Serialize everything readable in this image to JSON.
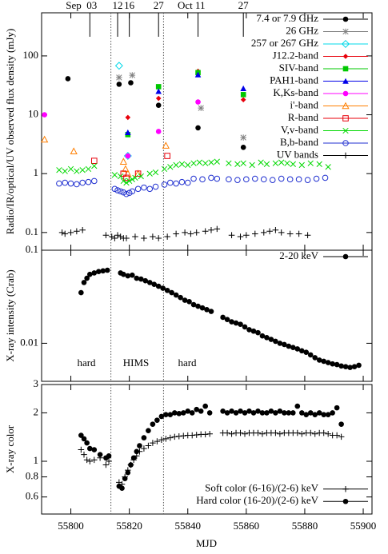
{
  "chart_data": {
    "type": "scatter",
    "xlabel": "MJD",
    "xlim": [
      55790,
      55903
    ],
    "xticks": [
      55800,
      55820,
      55840,
      55860,
      55880,
      55900
    ],
    "date_markers": [
      {
        "x": 55806.5,
        "label": "Sep  03"
      },
      {
        "x": 55816,
        "label": "12"
      },
      {
        "x": 55820,
        "label": "16"
      },
      {
        "x": 55830,
        "label": "27"
      },
      {
        "x": 55843.5,
        "label": "Oct 11"
      },
      {
        "x": 55859,
        "label": "27"
      }
    ],
    "state_boundaries": [
      55813.7,
      55831.7
    ],
    "panels": [
      {
        "ylabel": "Radio/IR/optical/UV observed flux density (mJy)",
        "yscale": "log",
        "ylim": [
          0.05,
          540
        ],
        "yticks": [
          0.1,
          1,
          10,
          100
        ],
        "legend": "top-right",
        "series": [
          {
            "name": "7.4 or 7.9 GHz",
            "color": "#000000",
            "marker": "circle-filled",
            "x": [
              55799,
              55816.5,
              55820.5,
              55830,
              55843.5,
              55859
            ],
            "values": [
              41,
              33,
              35,
              14.5,
              6,
              2.8
            ]
          },
          {
            "name": "26 GHz",
            "color": "#808080",
            "marker": "asterisk",
            "x": [
              55816.5,
              55821,
              55844.5,
              55859
            ],
            "values": [
              43,
              47,
              13,
              4.1
            ]
          },
          {
            "name": "257 or 267 GHz",
            "color": "#00d8e8",
            "marker": "diamond-open",
            "x": [
              55816.5,
              55819.5
            ],
            "values": [
              68,
              2
            ]
          },
          {
            "name": "J12.2-band",
            "color": "#e8000b",
            "marker": "diamond-filled",
            "x": [
              55819.5,
              55830,
              55843.5,
              55859
            ],
            "values": [
              9,
              19,
              55,
              18
            ]
          },
          {
            "name": "SIV-band",
            "color": "#00c800",
            "marker": "square-filled",
            "x": [
              55819.5,
              55830,
              55843.5,
              55859
            ],
            "values": [
              4.6,
              30,
              52,
              22
            ]
          },
          {
            "name": "PAH1-band",
            "color": "#0000e8",
            "marker": "triangle-filled",
            "x": [
              55819.5,
              55830,
              55843.5,
              55859
            ],
            "values": [
              5,
              25,
              48,
              28
            ]
          },
          {
            "name": "K,Ks-band",
            "color": "#ff00ff",
            "marker": "circle-filled",
            "x": [
              55791,
              55819.5,
              55830,
              55843.5
            ],
            "values": [
              10,
              2,
              5.2,
              16.5
            ]
          },
          {
            "name": "i'-band",
            "color": "#ff7f00",
            "marker": "triangle-open",
            "x": [
              55791,
              55801,
              55818,
              55818.7,
              55819.5,
              55823,
              55832.5
            ],
            "values": [
              3.8,
              2.4,
              1.6,
              1.2,
              1.0,
              1.0,
              3.0
            ]
          },
          {
            "name": "R-band",
            "color": "#e8000b",
            "marker": "square-open",
            "x": [
              55808,
              55818,
              55819,
              55823,
              55833
            ],
            "values": [
              1.65,
              1.0,
              0.85,
              1.0,
              2.0
            ]
          },
          {
            "name": "V,v-band",
            "color": "#00d800",
            "marker": "x",
            "x": [
              55796,
              55798,
              55800,
              55802,
              55804,
              55806,
              55808,
              55815,
              55817,
              55818,
              55819,
              55820,
              55821,
              55822,
              55824,
              55827,
              55829,
              55832,
              55834,
              55836,
              55838,
              55840,
              55842,
              55844,
              55846,
              55848,
              55850,
              55854,
              55857,
              55859,
              55862,
              55865,
              55867,
              55870,
              55872,
              55874,
              55876,
              55879,
              55882,
              55885,
              55888
            ],
            "values": [
              1.15,
              1.1,
              1.2,
              1.1,
              1.15,
              1.2,
              1.35,
              0.95,
              0.9,
              0.75,
              0.7,
              0.75,
              0.8,
              0.85,
              0.9,
              1.0,
              1.05,
              1.2,
              1.3,
              1.4,
              1.45,
              1.4,
              1.5,
              1.55,
              1.5,
              1.55,
              1.6,
              1.5,
              1.45,
              1.5,
              1.4,
              1.55,
              1.45,
              1.5,
              1.55,
              1.5,
              1.45,
              1.4,
              1.5,
              1.45,
              1.3
            ]
          },
          {
            "name": "B,b-band",
            "color": "#2030d0",
            "marker": "circle-open",
            "x": [
              55796,
              55798,
              55800,
              55802,
              55804,
              55806,
              55808,
              55815,
              55816,
              55817,
              55818,
              55819,
              55820,
              55821,
              55823,
              55825,
              55827,
              55829,
              55832,
              55834,
              55836,
              55838,
              55840,
              55842,
              55845,
              55848,
              55850,
              55854,
              55857,
              55860,
              55863,
              55866,
              55869,
              55872,
              55875,
              55878,
              55881,
              55884,
              55887
            ],
            "values": [
              0.68,
              0.7,
              0.68,
              0.66,
              0.7,
              0.72,
              0.75,
              0.55,
              0.52,
              0.5,
              0.48,
              0.45,
              0.47,
              0.5,
              0.55,
              0.58,
              0.55,
              0.6,
              0.65,
              0.7,
              0.68,
              0.72,
              0.7,
              0.82,
              0.8,
              0.85,
              0.82,
              0.8,
              0.78,
              0.8,
              0.82,
              0.8,
              0.78,
              0.82,
              0.8,
              0.8,
              0.78,
              0.82,
              0.85
            ]
          },
          {
            "name": "UV bands",
            "color": "#000000",
            "marker": "plus",
            "x": [
              55797,
              55798,
              55800,
              55802,
              55804,
              55812,
              55814,
              55815,
              55816,
              55817,
              55818,
              55819,
              55822,
              55825,
              55828,
              55830,
              55833,
              55836,
              55839,
              55841,
              55843,
              55846,
              55848,
              55850,
              55855,
              55858,
              55860,
              55863,
              55866,
              55868,
              55870,
              55872,
              55875,
              55878,
              55881
            ],
            "values": [
              0.1,
              0.095,
              0.1,
              0.105,
              0.11,
              0.09,
              0.085,
              0.08,
              0.09,
              0.085,
              0.08,
              0.08,
              0.085,
              0.08,
              0.085,
              0.08,
              0.085,
              0.095,
              0.1,
              0.095,
              0.1,
              0.105,
              0.11,
              0.115,
              0.09,
              0.085,
              0.09,
              0.095,
              0.1,
              0.105,
              0.11,
              0.1,
              0.095,
              0.095,
              0.09
            ]
          }
        ]
      },
      {
        "ylabel": "X-ray intensity (Crab)",
        "yscale": "log",
        "ylim": [
          0.0039,
          0.1
        ],
        "yticks": [
          0.01,
          0.1
        ],
        "legend": "top-right",
        "annotations": [
          "hard",
          "HIMS",
          "hard"
        ],
        "series": [
          {
            "name": "2-20 keV",
            "color": "#000000",
            "marker": "circle-filled",
            "x": [
              55803.5,
              55804.5,
              55805.5,
              55806.5,
              55808,
              55809.5,
              55811,
              55812.5,
              55817,
              55818,
              55819.5,
              55821,
              55822.5,
              55824,
              55825.5,
              55827,
              55828.5,
              55830,
              55831.5,
              55833,
              55834.5,
              55836,
              55837.5,
              55839,
              55840.5,
              55842,
              55843.5,
              55845,
              55846.5,
              55848,
              55852,
              55853.5,
              55855,
              55856.5,
              55858,
              55859.5,
              55861,
              55862.5,
              55864,
              55865.5,
              55867,
              55868.5,
              55870,
              55871.5,
              55873,
              55874.5,
              55876,
              55877.5,
              55879,
              55880.5,
              55882,
              55883.5,
              55885,
              55886.5,
              55888,
              55889.5,
              55891,
              55892.5,
              55894,
              55895.5,
              55897,
              55898.5
            ],
            "values": [
              0.035,
              0.045,
              0.05,
              0.055,
              0.057,
              0.059,
              0.06,
              0.061,
              0.057,
              0.055,
              0.053,
              0.054,
              0.05,
              0.049,
              0.047,
              0.045,
              0.043,
              0.041,
              0.039,
              0.037,
              0.035,
              0.033,
              0.031,
              0.029,
              0.028,
              0.026,
              0.025,
              0.024,
              0.023,
              0.022,
              0.019,
              0.018,
              0.017,
              0.0165,
              0.016,
              0.015,
              0.014,
              0.0135,
              0.013,
              0.012,
              0.0115,
              0.011,
              0.0105,
              0.01,
              0.0097,
              0.0093,
              0.009,
              0.0087,
              0.0083,
              0.008,
              0.0075,
              0.007,
              0.0066,
              0.0064,
              0.0062,
              0.006,
              0.0059,
              0.0057,
              0.0056,
              0.0055,
              0.0056,
              0.0058
            ]
          }
        ]
      },
      {
        "ylabel": "X-ray color",
        "yscale": "log",
        "ylim": [
          0.47,
          3
        ],
        "yticks": [
          0.6,
          0.8,
          1,
          2,
          3
        ],
        "legend": "bottom-right",
        "series": [
          {
            "name": "Soft color (6-16)/(2-6) keV",
            "color": "#000000",
            "marker": "plus",
            "x": [
              55803.5,
              55804.5,
              55805.5,
              55806.5,
              55808,
              55810,
              55812,
              55813,
              55816.5,
              55817.5,
              55818.5,
              55819.5,
              55820.5,
              55821.5,
              55822.5,
              55823.5,
              55825,
              55826.5,
              55828,
              55829.5,
              55831,
              55832.5,
              55834,
              55835.5,
              55837,
              55838.5,
              55840,
              55841.5,
              55843,
              55844.5,
              55846,
              55847.5,
              55852,
              55853.5,
              55855,
              55856.5,
              55858,
              55859.5,
              55861,
              55862.5,
              55864,
              55865.5,
              55867,
              55868.5,
              55870,
              55871.5,
              55873,
              55874.5,
              55876,
              55877.5,
              55879,
              55880.5,
              55882,
              55883.5,
              55885,
              55886.5,
              55888,
              55889.5,
              55891,
              55892.5
            ],
            "values": [
              1.18,
              1.1,
              1.02,
              1.0,
              1.02,
              1.05,
              0.95,
              1.0,
              0.74,
              0.72,
              0.8,
              0.88,
              0.95,
              1.02,
              1.08,
              1.15,
              1.2,
              1.25,
              1.3,
              1.33,
              1.36,
              1.38,
              1.4,
              1.42,
              1.43,
              1.44,
              1.45,
              1.45,
              1.46,
              1.47,
              1.47,
              1.48,
              1.5,
              1.5,
              1.48,
              1.5,
              1.5,
              1.48,
              1.5,
              1.5,
              1.5,
              1.48,
              1.5,
              1.5,
              1.5,
              1.48,
              1.5,
              1.5,
              1.5,
              1.5,
              1.48,
              1.5,
              1.5,
              1.48,
              1.5,
              1.5,
              1.48,
              1.45,
              1.45,
              1.42
            ]
          },
          {
            "name": "Hard color (16-20)/(2-6) keV",
            "color": "#000000",
            "marker": "circle-filled",
            "x": [
              55803.5,
              55804.5,
              55805.5,
              55806.5,
              55808,
              55810,
              55812,
              55813,
              55816.5,
              55817.5,
              55818.5,
              55819.5,
              55820.5,
              55821.5,
              55822.5,
              55823.5,
              55825,
              55826.5,
              55828,
              55829.5,
              55831,
              55832.5,
              55834,
              55835.5,
              55837,
              55838.5,
              55840,
              55841.5,
              55843,
              55844.5,
              55846,
              55847.5,
              55852,
              55853.5,
              55855,
              55856.5,
              55858,
              55859.5,
              55861,
              55862.5,
              55864,
              55865.5,
              55867,
              55868.5,
              55870,
              55871.5,
              55873,
              55874.5,
              55876,
              55877.5,
              55879,
              55880.5,
              55882,
              55883.5,
              55885,
              55886.5,
              55888,
              55889.5,
              55891,
              55892.5
            ],
            "values": [
              1.45,
              1.38,
              1.3,
              1.2,
              1.18,
              1.1,
              1.05,
              1.08,
              0.7,
              0.68,
              0.78,
              0.85,
              0.95,
              1.05,
              1.15,
              1.25,
              1.4,
              1.55,
              1.7,
              1.8,
              1.9,
              1.95,
              1.95,
              2.0,
              1.98,
              2.0,
              2.05,
              2.0,
              2.1,
              2.05,
              2.2,
              2.0,
              2.05,
              2.0,
              2.05,
              2.0,
              2.05,
              2.0,
              2.05,
              2.0,
              2.05,
              2.0,
              2.0,
              2.05,
              2.0,
              2.05,
              2.0,
              2.0,
              2.0,
              2.2,
              2.0,
              1.95,
              2.0,
              1.95,
              2.0,
              1.95,
              1.95,
              2.0,
              2.15,
              1.7
            ]
          }
        ]
      }
    ]
  }
}
